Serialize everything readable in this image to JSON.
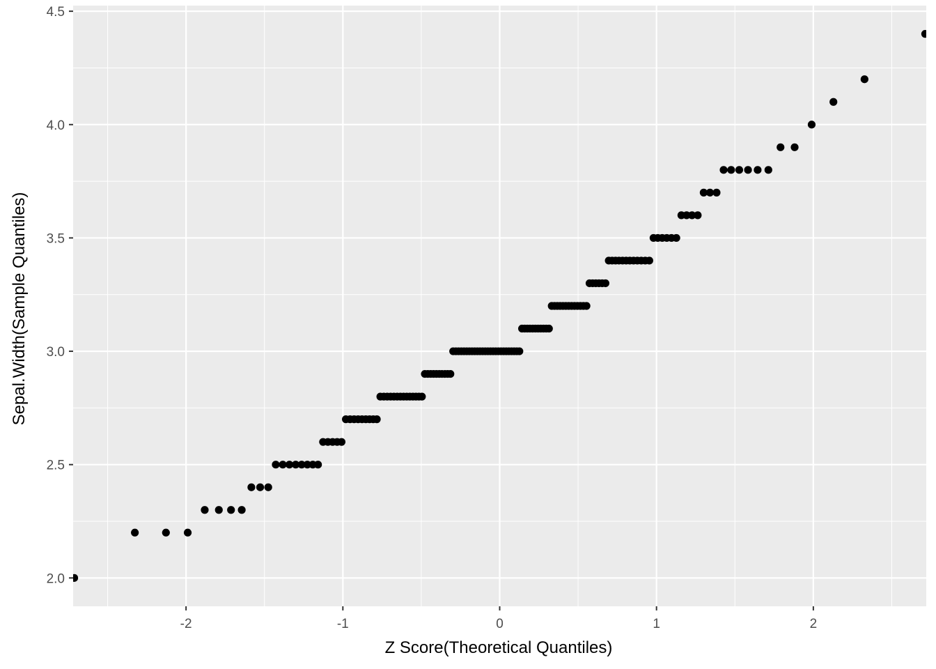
{
  "chart_data": {
    "type": "scatter",
    "title": "",
    "xlabel": "Z Score(Theoretical Quantiles)",
    "ylabel": "Sepal.Width(Sample Quantiles)",
    "xlim": [
      -2.72,
      2.72
    ],
    "ylim": [
      1.875,
      4.525
    ],
    "x_ticks": [
      -2,
      -1,
      0,
      1,
      2
    ],
    "x_tick_labels": [
      "-2",
      "-1",
      "0",
      "1",
      "2"
    ],
    "y_ticks": [
      2.0,
      2.5,
      3.0,
      3.5,
      4.0,
      4.5
    ],
    "y_tick_labels": [
      "2.0",
      "2.5",
      "3.0",
      "3.5",
      "4.0",
      "4.5"
    ],
    "grid": true,
    "legend": "none",
    "panel_color": "#ebebeb",
    "grid_color": "#ffffff",
    "point_color": "#000000",
    "series": [
      {
        "values_by_level": [
          {
            "y": 2.0,
            "count": 1
          },
          {
            "y": 2.2,
            "count": 3
          },
          {
            "y": 2.3,
            "count": 4
          },
          {
            "y": 2.4,
            "count": 3
          },
          {
            "y": 2.5,
            "count": 8
          },
          {
            "y": 2.6,
            "count": 5
          },
          {
            "y": 2.7,
            "count": 9
          },
          {
            "y": 2.8,
            "count": 14
          },
          {
            "y": 2.9,
            "count": 10
          },
          {
            "y": 3.0,
            "count": 26
          },
          {
            "y": 3.1,
            "count": 11
          },
          {
            "y": 3.2,
            "count": 13
          },
          {
            "y": 3.3,
            "count": 6
          },
          {
            "y": 3.4,
            "count": 12
          },
          {
            "y": 3.5,
            "count": 6
          },
          {
            "y": 3.6,
            "count": 4
          },
          {
            "y": 3.7,
            "count": 3
          },
          {
            "y": 3.8,
            "count": 6
          },
          {
            "y": 3.9,
            "count": 2
          },
          {
            "y": 4.0,
            "count": 1
          },
          {
            "y": 4.1,
            "count": 1
          },
          {
            "y": 4.2,
            "count": 1
          },
          {
            "y": 4.4,
            "count": 1
          }
        ]
      }
    ]
  }
}
